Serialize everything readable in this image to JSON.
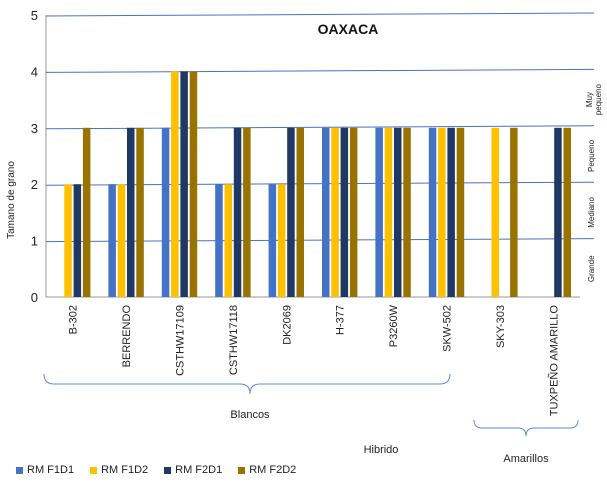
{
  "chart_data": {
    "type": "bar",
    "title": "OAXACA",
    "ylabel": "Tamano de grano",
    "ylim": [
      0,
      5
    ],
    "yticks": [
      0,
      1,
      2,
      3,
      4,
      5
    ],
    "categories": [
      "B-302",
      "BERRENDO",
      "CSTHW17109",
      "CSTHW17118",
      "DK2069",
      "H-377",
      "P3260W",
      "SKW-502",
      "SKY-303",
      "TUXPEÑO AMARILLO"
    ],
    "series": [
      {
        "name": "RM F1D1",
        "color": "#4472C4",
        "values": [
          0,
          2,
          3,
          2,
          2,
          3,
          3,
          3,
          0,
          0
        ]
      },
      {
        "name": "RM F1D2",
        "color": "#FFC000",
        "values": [
          2,
          2,
          4,
          2,
          2,
          3,
          3,
          3,
          3,
          0
        ]
      },
      {
        "name": "RM F2D1",
        "color": "#203864",
        "values": [
          2,
          3,
          4,
          3,
          3,
          3,
          3,
          3,
          0,
          3
        ]
      },
      {
        "name": "RM F2D2",
        "color": "#997300",
        "values": [
          3,
          3,
          4,
          3,
          3,
          3,
          3,
          3,
          3,
          3
        ]
      }
    ],
    "right_labels": [
      "Muy pequeno",
      "Pequeno",
      "Mediano",
      "Grande"
    ],
    "group_labels": {
      "blancos": "Blancos",
      "amarillos": "Amarillos",
      "hibrido": "Hibrido"
    },
    "legend_position": "bottom-left"
  }
}
